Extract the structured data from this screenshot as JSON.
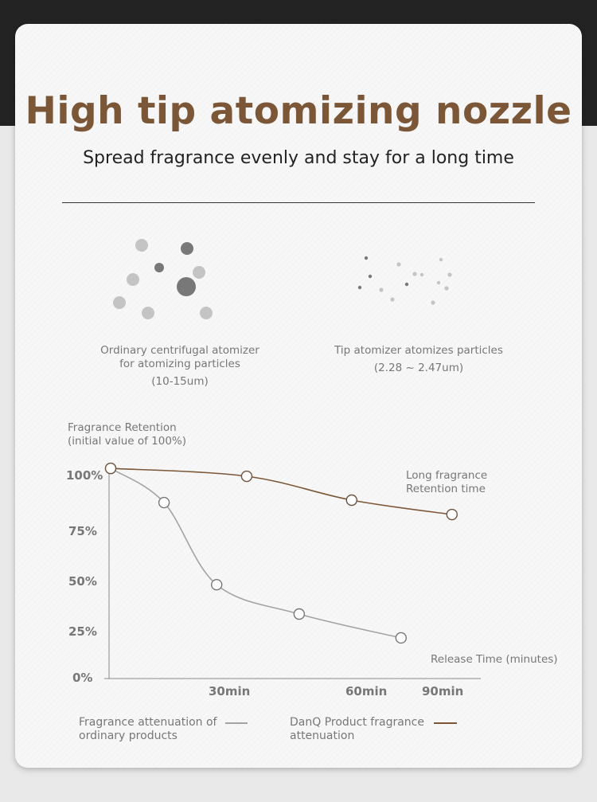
{
  "header": {
    "title": "High tip atomizing nozzle",
    "subtitle": "Spread fragrance evenly and stay for a long time"
  },
  "comparison": {
    "ordinary": {
      "line1": "Ordinary centrifugal atomizer",
      "line2": "for atomizing particles",
      "line3": "(10-15um)"
    },
    "tip": {
      "line1": "Tip atomizer atomizes particles",
      "line2": "(2.28 ~ 2.47um)"
    }
  },
  "chart_data": {
    "type": "line",
    "ylabel_line1": "Fragrance Retention",
    "ylabel_line2": "(initial value of 100%)",
    "xlabel": "Release Time (minutes)",
    "annotation_line1": "Long fragrance",
    "annotation_line2": "Retention time",
    "y_ticks": [
      "0%",
      "25%",
      "50%",
      "75%",
      "100%"
    ],
    "x_ticks": [
      "30min",
      "60min",
      "90min"
    ],
    "ylim": [
      0,
      100
    ],
    "grid": false,
    "legend_position": "bottom",
    "series": [
      {
        "name": "Fragrance attenuation of ordinary products",
        "name_line1": "Fragrance attenuation of",
        "name_line2": "ordinary products",
        "color": "#a3a3a3",
        "x": [
          0,
          13.6,
          27,
          45.5,
          74
        ],
        "y": [
          103.5,
          86.6,
          46,
          31.5,
          19.7
        ]
      },
      {
        "name": "DanQ  Product fragrance attenuation",
        "name_line1": "DanQ  Product fragrance",
        "name_line2": "attenuation",
        "color": "#7b5737",
        "x": [
          0,
          34,
          57,
          94
        ],
        "y": [
          103.5,
          99.6,
          87.8,
          80.7
        ]
      }
    ]
  }
}
